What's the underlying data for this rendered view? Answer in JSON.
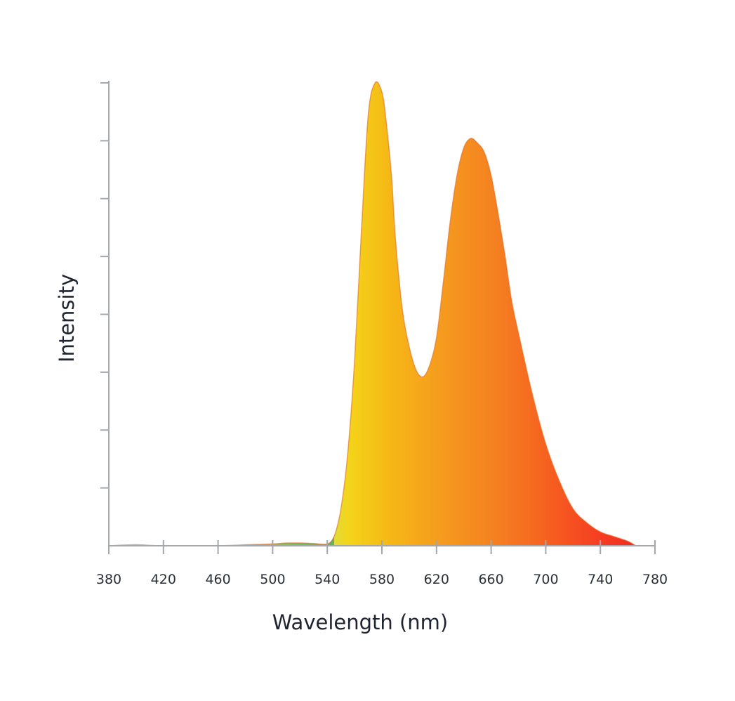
{
  "chart_data": {
    "type": "area",
    "title": "",
    "xlabel": "Wavelength (nm)",
    "ylabel": "Intensity",
    "xlim": [
      380,
      780
    ],
    "ylim": [
      0,
      1
    ],
    "x_ticks": [
      380,
      420,
      460,
      500,
      540,
      580,
      620,
      660,
      700,
      740,
      780
    ],
    "y_tick_count": 8,
    "y_tick_labels_shown": false,
    "grid": false,
    "legend": "none",
    "fill": "wavelength-colored gradient (yellow-green to red)",
    "gradient_colors": [
      {
        "wavelength": 540,
        "color": "#d6e04a"
      },
      {
        "wavelength": 555,
        "color": "#f3d51a"
      },
      {
        "wavelength": 585,
        "color": "#f6b816"
      },
      {
        "wavelength": 625,
        "color": "#f59a1e"
      },
      {
        "wavelength": 665,
        "color": "#f57f21"
      },
      {
        "wavelength": 705,
        "color": "#f65d20"
      },
      {
        "wavelength": 740,
        "color": "#f53d22"
      },
      {
        "wavelength": 766,
        "color": "#f42a1f"
      }
    ],
    "series": [
      {
        "x": [
          380,
          400,
          420,
          460,
          480,
          500,
          510,
          520,
          530,
          540,
          545,
          550,
          555,
          560,
          565,
          570,
          575,
          580,
          583,
          587,
          590,
          595,
          600,
          605,
          610,
          615,
          620,
          625,
          630,
          635,
          640,
          645,
          650,
          655,
          660,
          665,
          670,
          675,
          680,
          690,
          700,
          710,
          720,
          730,
          740,
          750,
          760,
          766
        ],
        "y": [
          0.0,
          0.002,
          0.0,
          0.0,
          0.002,
          0.004,
          0.006,
          0.006,
          0.005,
          0.004,
          0.02,
          0.08,
          0.2,
          0.4,
          0.68,
          0.93,
          1.0,
          0.98,
          0.92,
          0.8,
          0.66,
          0.51,
          0.43,
          0.38,
          0.365,
          0.39,
          0.45,
          0.57,
          0.7,
          0.8,
          0.86,
          0.88,
          0.87,
          0.85,
          0.8,
          0.72,
          0.63,
          0.53,
          0.46,
          0.33,
          0.22,
          0.14,
          0.08,
          0.05,
          0.03,
          0.02,
          0.01,
          0.0
        ]
      }
    ]
  }
}
